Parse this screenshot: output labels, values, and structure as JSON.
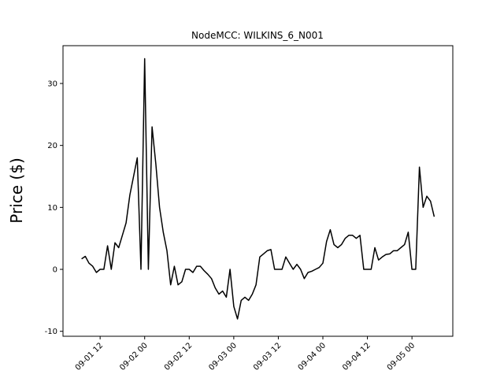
{
  "chart_data": {
    "type": "line",
    "title": "NodeMCC: WILKINS_6_N001",
    "y_label": "Price ($)",
    "x": [
      "09-01 07",
      "09-01 08",
      "09-01 09",
      "09-01 10",
      "09-01 11",
      "09-01 12",
      "09-01 13",
      "09-01 14",
      "09-01 15",
      "09-01 16",
      "09-01 17",
      "09-01 18",
      "09-01 19",
      "09-01 20",
      "09-01 21",
      "09-01 22",
      "09-01 23",
      "09-02 00",
      "09-02 01",
      "09-02 02",
      "09-02 03",
      "09-02 04",
      "09-02 05",
      "09-02 06",
      "09-02 07",
      "09-02 08",
      "09-02 09",
      "09-02 10",
      "09-02 11",
      "09-02 12",
      "09-02 13",
      "09-02 14",
      "09-02 15",
      "09-02 16",
      "09-02 17",
      "09-02 18",
      "09-02 19",
      "09-02 20",
      "09-02 21",
      "09-02 22",
      "09-02 23",
      "09-03 00",
      "09-03 01",
      "09-03 02",
      "09-03 03",
      "09-03 04",
      "09-03 05",
      "09-03 06",
      "09-03 07",
      "09-03 08",
      "09-03 09",
      "09-03 10",
      "09-03 11",
      "09-03 12",
      "09-03 13",
      "09-03 14",
      "09-03 15",
      "09-03 16",
      "09-03 17",
      "09-03 18",
      "09-03 19",
      "09-03 20",
      "09-03 21",
      "09-03 22",
      "09-03 23",
      "09-04 00",
      "09-04 01",
      "09-04 02",
      "09-04 03",
      "09-04 04",
      "09-04 05",
      "09-04 06",
      "09-04 07",
      "09-04 08",
      "09-04 09",
      "09-04 10",
      "09-04 11",
      "09-04 12",
      "09-04 13",
      "09-04 14",
      "09-04 15",
      "09-04 16",
      "09-04 17",
      "09-04 18",
      "09-04 19",
      "09-04 20",
      "09-04 21",
      "09-04 22",
      "09-04 23",
      "09-05 00",
      "09-05 01",
      "09-05 02",
      "09-05 03",
      "09-05 04",
      "09-05 05",
      "09-05 06"
    ],
    "series": [
      {
        "name": "WILKINS_6_N001",
        "color": "#000000",
        "values": [
          1.7,
          2.1,
          1,
          0.5,
          -0.5,
          0,
          0,
          3.8,
          0,
          4.3,
          3.5,
          5.5,
          7.5,
          12,
          15,
          18,
          0,
          34,
          0,
          23,
          17,
          10,
          6,
          3,
          -2.5,
          0.5,
          -2.5,
          -2,
          0,
          0,
          -0.5,
          0.5,
          0.5,
          -0.2,
          -0.8,
          -1.5,
          -3,
          -4,
          -3.5,
          -4.5,
          0,
          -6,
          -8,
          -5,
          -4.5,
          -5,
          -4,
          -2.5,
          2,
          2.5,
          3,
          3.2,
          0,
          0,
          0,
          2,
          1,
          0,
          0.8,
          0,
          -1.5,
          -0.5,
          -0.3,
          0,
          0.3,
          1,
          4.5,
          6.4,
          4,
          3.5,
          4,
          5,
          5.5,
          5.5,
          5,
          5.5,
          0,
          0,
          0,
          3.5,
          1.5,
          2,
          2.4,
          2.5,
          3,
          3,
          3.5,
          4,
          6,
          0,
          0,
          16.5,
          10,
          11.8,
          11,
          8.5
        ]
      }
    ],
    "xlim": [
      "09-01 02",
      "09-05 11"
    ],
    "xticks": [
      "09-01 12",
      "09-02 00",
      "09-02 12",
      "09-03 00",
      "09-03 12",
      "09-04 00",
      "09-04 12",
      "09-05 00"
    ],
    "ylim": [
      -10.8,
      36.1
    ],
    "yticks": [
      -10,
      0,
      10,
      20,
      30
    ]
  }
}
